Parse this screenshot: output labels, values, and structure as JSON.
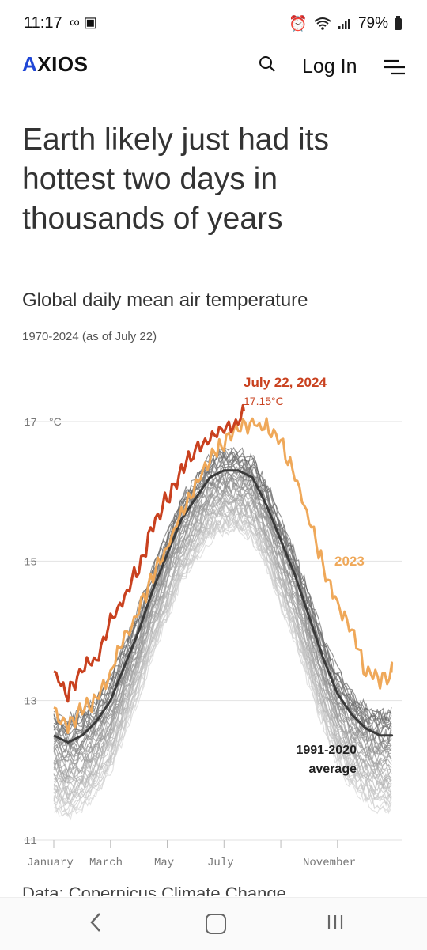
{
  "status_bar": {
    "time": "11:17",
    "left_icons": [
      "voicemail-icon",
      "image-icon"
    ],
    "right_icons": [
      "alarm-icon",
      "wifi-icon",
      "signal-icon"
    ],
    "battery": "79%"
  },
  "header": {
    "logo": "AXIOS",
    "login_label": "Log In",
    "accent_color": "#1f46d6"
  },
  "article": {
    "headline": "Earth likely just had its hottest two days in thousands of years"
  },
  "chart_data": {
    "type": "line",
    "title": "Global daily mean air temperature",
    "subtitle": "1970-2024 (as of July 22)",
    "unit": "°C",
    "y_ticks": [
      "17",
      "15",
      "13",
      "11"
    ],
    "x_ticks": [
      "January",
      "March",
      "May",
      "July",
      "November"
    ],
    "ylim": [
      11,
      17.6
    ],
    "grid": true,
    "annotations": {
      "record_title": "July 22, 2024",
      "record_value": "17.15°C",
      "label_2023": "2023",
      "avg_line1": "1991-2020",
      "avg_line2": "average"
    },
    "colors": {
      "y2024": "#c9411f",
      "y2023": "#efa859",
      "average": "#3a3a3a",
      "history": "#8a8a8a"
    },
    "x_months": [
      0,
      1,
      2,
      3,
      4,
      5,
      6,
      7,
      8,
      9,
      10,
      11,
      11.9
    ],
    "series": [
      {
        "name": "2024",
        "x": [
          0,
          0.5,
          1,
          1.5,
          2,
          2.5,
          3,
          3.5,
          4,
          4.5,
          5,
          5.5,
          6,
          6.5,
          6.7
        ],
        "values": [
          13.4,
          13.1,
          13.5,
          13.6,
          14.1,
          14.5,
          14.9,
          15.5,
          15.9,
          16.3,
          16.6,
          16.8,
          16.9,
          17.0,
          17.15
        ]
      },
      {
        "name": "2023",
        "x": [
          0,
          0.5,
          1,
          1.5,
          2,
          2.5,
          3,
          3.5,
          4,
          4.5,
          5,
          5.5,
          6,
          6.5,
          7,
          7.5,
          8,
          8.5,
          9,
          9.5,
          10,
          10.5,
          11,
          11.5,
          11.9
        ],
        "values": [
          12.9,
          12.6,
          12.9,
          13.0,
          13.4,
          13.9,
          14.3,
          14.8,
          15.2,
          15.7,
          16.1,
          16.5,
          16.7,
          16.9,
          17.0,
          16.9,
          16.7,
          16.2,
          15.6,
          14.9,
          14.4,
          14.0,
          13.4,
          13.3,
          13.4
        ]
      },
      {
        "name": "1991-2020 average",
        "x": [
          0,
          0.5,
          1,
          1.5,
          2,
          2.5,
          3,
          3.5,
          4,
          4.5,
          5,
          5.5,
          6,
          6.5,
          7,
          7.5,
          8,
          8.5,
          9,
          9.5,
          10,
          10.5,
          11,
          11.5,
          11.9
        ],
        "values": [
          12.5,
          12.4,
          12.5,
          12.7,
          13.0,
          13.5,
          14.0,
          14.6,
          15.1,
          15.6,
          15.9,
          16.2,
          16.3,
          16.3,
          16.2,
          15.8,
          15.3,
          14.8,
          14.2,
          13.6,
          13.1,
          12.8,
          12.6,
          12.5,
          12.5
        ]
      }
    ]
  },
  "footer": {
    "source": "Data: Copernicus Climate Change"
  }
}
